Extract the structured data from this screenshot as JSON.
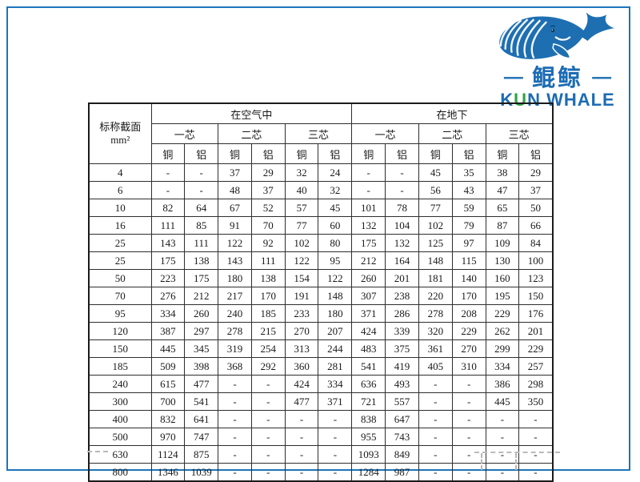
{
  "logo": {
    "cn": "鲲鲸",
    "dash": "—",
    "en_parts": [
      "K",
      "U",
      "N WHALE"
    ],
    "blue": "#1c6cb4",
    "green": "#2fa347"
  },
  "frame_color": "#1c75bc",
  "table": {
    "corner": {
      "line1": "标称截面",
      "line2": "mm²"
    },
    "groups": [
      {
        "label": "在空气中"
      },
      {
        "label": "在地下"
      }
    ],
    "core_labels": [
      "一芯",
      "二芯",
      "三芯"
    ],
    "material_labels": [
      "铜",
      "铝"
    ],
    "rows": [
      {
        "size": "4",
        "values": [
          "-",
          "-",
          "37",
          "29",
          "32",
          "24",
          "-",
          "-",
          "45",
          "35",
          "38",
          "29"
        ]
      },
      {
        "size": "6",
        "values": [
          "-",
          "-",
          "48",
          "37",
          "40",
          "32",
          "-",
          "-",
          "56",
          "43",
          "47",
          "37"
        ]
      },
      {
        "size": "10",
        "values": [
          "82",
          "64",
          "67",
          "52",
          "57",
          "45",
          "101",
          "78",
          "77",
          "59",
          "65",
          "50"
        ]
      },
      {
        "size": "16",
        "values": [
          "111",
          "85",
          "91",
          "70",
          "77",
          "60",
          "132",
          "104",
          "102",
          "79",
          "87",
          "66"
        ]
      },
      {
        "size": "25",
        "values": [
          "143",
          "111",
          "122",
          "92",
          "102",
          "80",
          "175",
          "132",
          "125",
          "97",
          "109",
          "84"
        ]
      },
      {
        "size": "25",
        "values": [
          "175",
          "138",
          "143",
          "111",
          "122",
          "95",
          "212",
          "164",
          "148",
          "115",
          "130",
          "100"
        ]
      },
      {
        "size": "50",
        "values": [
          "223",
          "175",
          "180",
          "138",
          "154",
          "122",
          "260",
          "201",
          "181",
          "140",
          "160",
          "123"
        ]
      },
      {
        "size": "70",
        "values": [
          "276",
          "212",
          "217",
          "170",
          "191",
          "148",
          "307",
          "238",
          "220",
          "170",
          "195",
          "150"
        ]
      },
      {
        "size": "95",
        "values": [
          "334",
          "260",
          "240",
          "185",
          "233",
          "180",
          "371",
          "286",
          "278",
          "208",
          "229",
          "176"
        ]
      },
      {
        "size": "120",
        "values": [
          "387",
          "297",
          "278",
          "215",
          "270",
          "207",
          "424",
          "339",
          "320",
          "229",
          "262",
          "201"
        ]
      },
      {
        "size": "150",
        "values": [
          "445",
          "345",
          "319",
          "254",
          "313",
          "244",
          "483",
          "375",
          "361",
          "270",
          "299",
          "229"
        ]
      },
      {
        "size": "185",
        "values": [
          "509",
          "398",
          "368",
          "292",
          "360",
          "281",
          "541",
          "419",
          "405",
          "310",
          "334",
          "257"
        ]
      },
      {
        "size": "240",
        "values": [
          "615",
          "477",
          "-",
          "-",
          "424",
          "334",
          "636",
          "493",
          "-",
          "-",
          "386",
          "298"
        ]
      },
      {
        "size": "300",
        "values": [
          "700",
          "541",
          "-",
          "-",
          "477",
          "371",
          "721",
          "557",
          "-",
          "-",
          "445",
          "350"
        ]
      },
      {
        "size": "400",
        "values": [
          "832",
          "641",
          "-",
          "-",
          "-",
          "-",
          "838",
          "647",
          "-",
          "-",
          "-",
          "-"
        ]
      },
      {
        "size": "500",
        "values": [
          "970",
          "747",
          "-",
          "-",
          "-",
          "-",
          "955",
          "743",
          "-",
          "-",
          "-",
          "-"
        ]
      },
      {
        "size": "630",
        "values": [
          "1124",
          "875",
          "-",
          "-",
          "-",
          "-",
          "1093",
          "849",
          "-",
          "-",
          "-",
          "-"
        ]
      },
      {
        "size": "800",
        "values": [
          "1346",
          "1039",
          "-",
          "-",
          "-",
          "-",
          "1284",
          "987",
          "-",
          "-",
          "-",
          "-"
        ]
      }
    ]
  }
}
